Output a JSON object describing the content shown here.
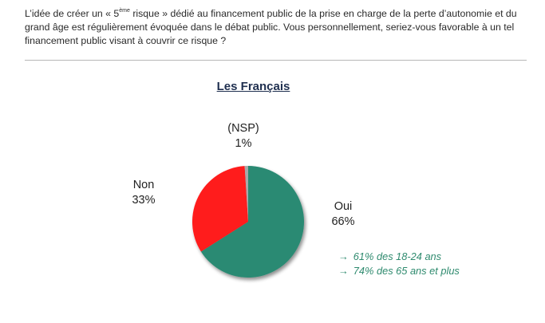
{
  "question": {
    "text_before": "L’idée de créer un « 5",
    "superscript": "ème",
    "text_after": " risque » dédié au financement public de la prise en charge de la perte d’autonomie et du grand âge est régulièrement évoquée dans le débat public. Vous personnellement, seriez-vous favorable à un tel financement public visant à couvrir ce risque ?"
  },
  "chart_data": {
    "type": "pie",
    "title": "Les Français",
    "slices": [
      {
        "label": "Oui",
        "value": 66,
        "value_label": "66%",
        "color": "#2a8a73"
      },
      {
        "label": "Non",
        "value": 33,
        "value_label": "33%",
        "color": "#ff1a1a"
      },
      {
        "label": "(NSP)",
        "value": 1,
        "value_label": "1%",
        "color": "#a9a9a9"
      }
    ],
    "annotations": [
      {
        "icon": "arrow-right-icon",
        "text": "61% des 18-24 ans"
      },
      {
        "icon": "arrow-right-icon",
        "text": "74% des 65 ans et plus"
      }
    ],
    "annotation_color": "#2e8a6e"
  }
}
